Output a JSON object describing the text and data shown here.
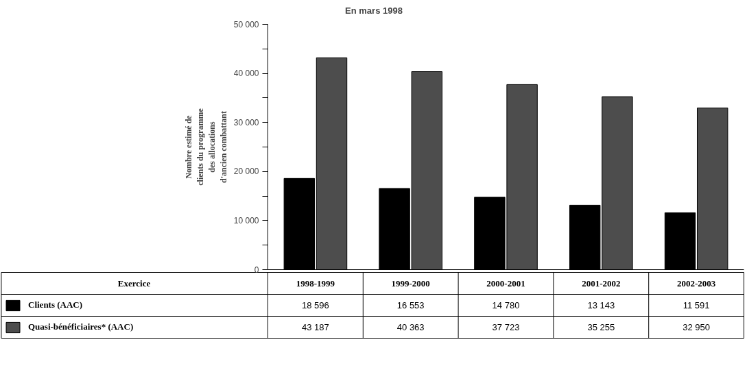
{
  "chart_data": {
    "type": "bar",
    "title": "En mars 1998",
    "ylabel": "Nombre estimé de\nclients du programme\ndes allocations\nd'ancien combattant",
    "annotations": [
      "Exercice"
    ],
    "categories": [
      "1998-1999",
      "1999-2000",
      "2000-2001",
      "2001-2002",
      "2002-2003"
    ],
    "series": [
      {
        "name": "Clients (AAC)",
        "color": "#000000",
        "values": [
          18596,
          16553,
          14780,
          13143,
          11591
        ],
        "value_labels": [
          "18 596",
          "16 553",
          "14 780",
          "13 143",
          "11 591"
        ]
      },
      {
        "name": "Quasi-bénéficiaires* (AAC)",
        "color": "#4d4d4d",
        "values": [
          43187,
          40363,
          37723,
          35255,
          32950
        ],
        "value_labels": [
          "43 187",
          "40 363",
          "37 723",
          "35 255",
          "32 950"
        ]
      }
    ],
    "ylim": [
      0,
      50000
    ],
    "yticks": [
      0,
      {
        "value": 5000,
        "label": null
      },
      {
        "value": 10000,
        "label": "10 000"
      },
      {
        "value": 15000,
        "label": null
      },
      {
        "value": 20000,
        "label": "20 000"
      },
      {
        "value": 25000,
        "label": null
      },
      {
        "value": 30000,
        "label": "30 000"
      },
      {
        "value": 35000,
        "label": null
      },
      {
        "value": 40000,
        "label": "40 000"
      },
      {
        "value": 45000,
        "label": null
      },
      {
        "value": 50000,
        "label": "50 000"
      }
    ],
    "grid": false,
    "legend": "bottom"
  }
}
